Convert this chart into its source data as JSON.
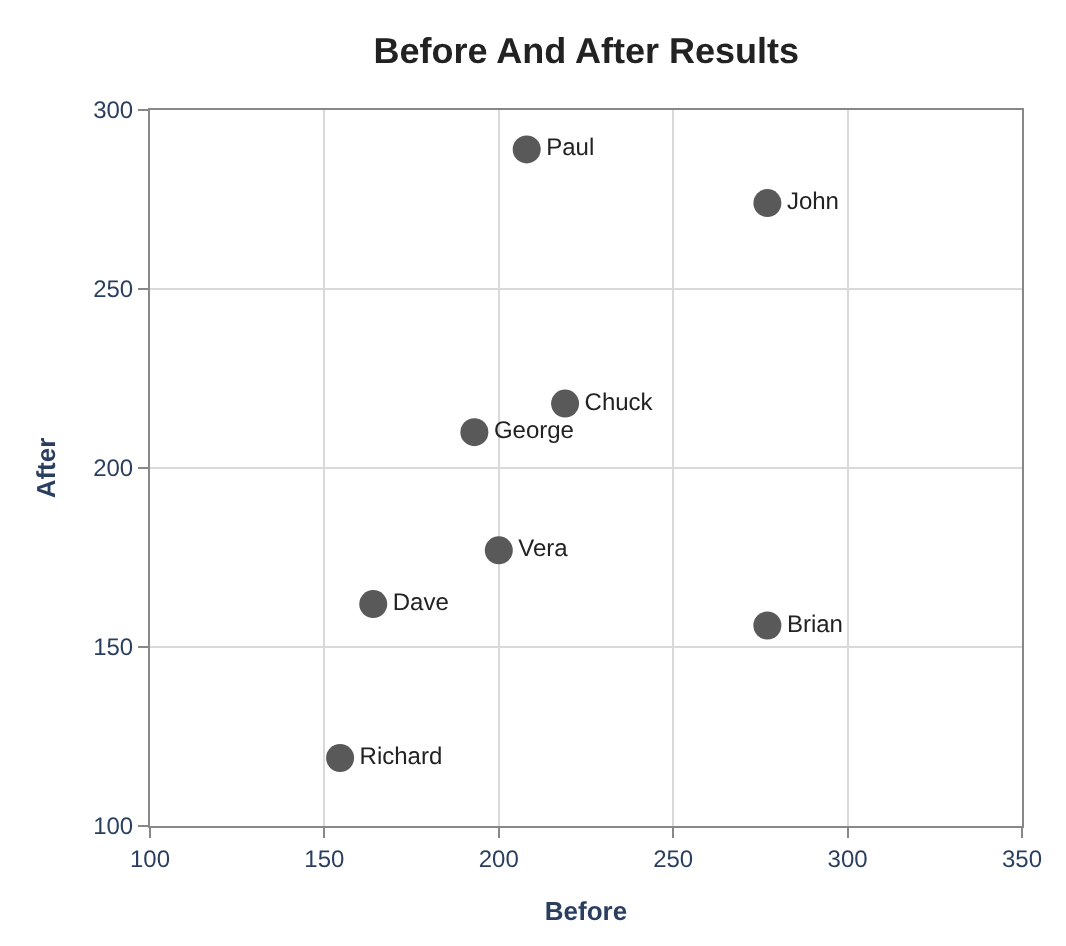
{
  "chart_data": {
    "type": "scatter",
    "title": "Before And After Results",
    "xlabel": "Before",
    "ylabel": "After",
    "x": [
      208,
      277,
      219,
      193,
      200,
      164,
      277,
      154.5
    ],
    "values": [
      289,
      274,
      218,
      210,
      177,
      162,
      156,
      119
    ],
    "value_labels": [
      "Paul",
      "John",
      "Chuck",
      "George",
      "Vera",
      "Dave",
      "Brian",
      "Richard"
    ],
    "color": "#595959",
    "marker": "circle",
    "xlim": [
      100,
      350
    ],
    "xticks": [
      100,
      150,
      200,
      250,
      300,
      350
    ],
    "ylim": [
      100,
      300
    ],
    "yticks": [
      100,
      150,
      200,
      250,
      300
    ],
    "grid": true,
    "legend": false
  }
}
